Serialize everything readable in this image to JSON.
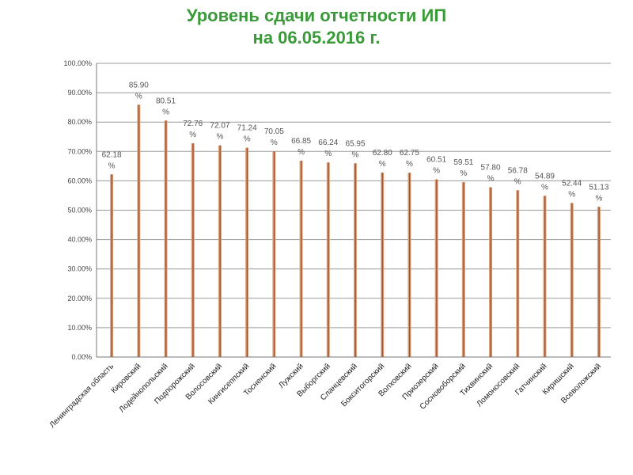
{
  "title": {
    "line1": "Уровень сдачи отчетности ИП",
    "line2": "на 06.05.2016 г."
  },
  "colors": {
    "title": "#3a9a3a",
    "bar_light": "#d9a07a",
    "bar_dark": "#a0522d",
    "grid": "#9a9a9a"
  },
  "chart_data": {
    "type": "bar",
    "title": "Уровень сдачи отчетности ИП на 06.05.2016 г.",
    "xlabel": "",
    "ylabel": "",
    "ylim": [
      0,
      100
    ],
    "grid": true,
    "yticks": [
      "0.00%",
      "10.00%",
      "20.00%",
      "30.00%",
      "40.00%",
      "50.00%",
      "60.00%",
      "70.00%",
      "80.00%",
      "90.00%",
      "100.00%"
    ],
    "categories": [
      "Ленинградская область",
      "Кировский",
      "Лодейнопольский",
      "Подпорожский",
      "Волосовский",
      "Кингисеппский",
      "Тосненский",
      "Лужский",
      "Выборгский",
      "Сланцевский",
      "Бокситогорский",
      "Волховский",
      "Приозерский",
      "Сосновоборский",
      "Тихвинский",
      "Ломоносовский",
      "Гатчинский",
      "Киришский",
      "Всеволожский"
    ],
    "values": [
      62.18,
      85.9,
      80.51,
      72.76,
      72.07,
      71.24,
      70.05,
      66.85,
      66.24,
      65.95,
      62.8,
      62.75,
      60.51,
      59.51,
      57.8,
      56.78,
      54.89,
      52.44,
      51.13
    ],
    "labels": [
      [
        "62.18",
        "%"
      ],
      [
        "85.90",
        "%"
      ],
      [
        "80.51",
        "%"
      ],
      [
        "72.76",
        "%"
      ],
      [
        "72.07",
        "%"
      ],
      [
        "71.24",
        "%"
      ],
      [
        "70.05",
        "%"
      ],
      [
        "66.85",
        "%"
      ],
      [
        "66.24",
        "%"
      ],
      [
        "65.95",
        "%"
      ],
      [
        "62.80",
        "%"
      ],
      [
        "62.75",
        "%"
      ],
      [
        "60.51",
        "%"
      ],
      [
        "59.51",
        "%"
      ],
      [
        "57.80",
        "%"
      ],
      [
        "56.78",
        "%"
      ],
      [
        "54.89",
        "%"
      ],
      [
        "52.44",
        "%"
      ],
      [
        "51.13",
        "%"
      ]
    ]
  }
}
